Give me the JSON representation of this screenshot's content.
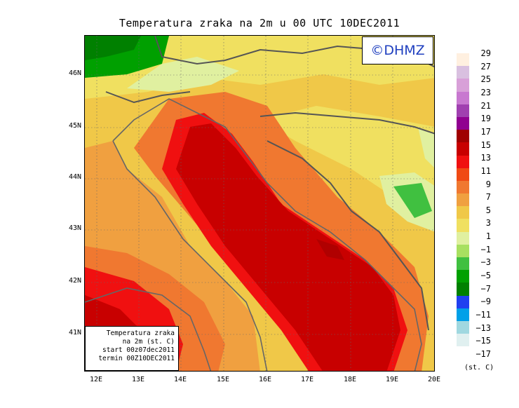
{
  "title": "Temperatura zraka na 2m u 00 UTC 10DEC2011",
  "copyright": "©DHMZ",
  "info": [
    "Temperatura zraka",
    "na 2m (st. C)",
    "start 00z07dec2011",
    "termin 00Z10DEC2011"
  ],
  "lat_labels": [
    "46N",
    "45N",
    "44N",
    "43N",
    "42N",
    "41N"
  ],
  "lon_labels": [
    "12E",
    "13E",
    "14E",
    "15E",
    "16E",
    "17E",
    "18E",
    "19E",
    "20E"
  ],
  "colorbar": {
    "unit": "(st. C)",
    "labels": [
      "29",
      "27",
      "25",
      "23",
      "21",
      "19",
      "17",
      "15",
      "13",
      "11",
      "9",
      "7",
      "5",
      "3",
      "1",
      "−1",
      "−3",
      "−5",
      "−7",
      "−9",
      "−11",
      "−13",
      "−15",
      "−17"
    ],
    "colors": [
      "#fff0e0",
      "#d9c0e0",
      "#d8a0d8",
      "#c878d0",
      "#a040b0",
      "#900090",
      "#a00000",
      "#c80000",
      "#f01010",
      "#f04a14",
      "#f07830",
      "#f0a040",
      "#f0c848",
      "#f0e060",
      "#e0f0a0",
      "#a8e060",
      "#40c040",
      "#00a000",
      "#008000",
      "#2040f0",
      "#00a0e8",
      "#a0d8e0",
      "#e0f0f0",
      "#ffffff"
    ]
  },
  "map": {
    "region": "Adriatic",
    "colors": {
      "deep_sea": "#b00000",
      "sea": "#c80000",
      "coast_warm": "#f01010",
      "orange": "#f07830",
      "light_orange": "#f0a040",
      "yellow": "#f0c848",
      "pale_yellow": "#f0e060",
      "light_green": "#e0f0a0",
      "green": "#40c040",
      "dark_green": "#00a000",
      "border": "#555555",
      "grid": "#666666"
    }
  }
}
